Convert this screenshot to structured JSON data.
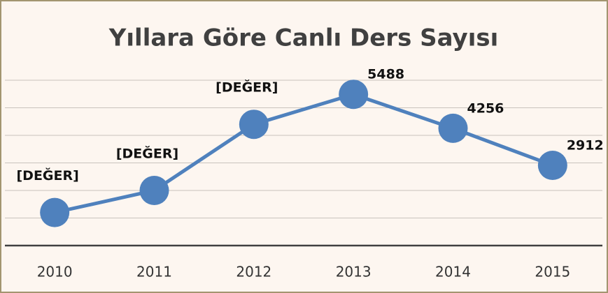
{
  "chart_data": {
    "type": "line",
    "title": "Yıllara Göre Canlı Ders Sayısı",
    "categories": [
      "2010",
      "2011",
      "2012",
      "2013",
      "2014",
      "2015"
    ],
    "values": [
      1200,
      2000,
      4400,
      5488,
      4256,
      2912
    ],
    "value_labels": [
      "[DEĞER]",
      "[DEĞER]",
      "[DEĞER]",
      "5488",
      "4256",
      "2912"
    ],
    "color": "#4f81bd",
    "ylim": [
      0,
      6000
    ],
    "yticks": [
      0,
      1000,
      2000,
      3000,
      4000,
      5000,
      6000
    ],
    "grid": true
  }
}
